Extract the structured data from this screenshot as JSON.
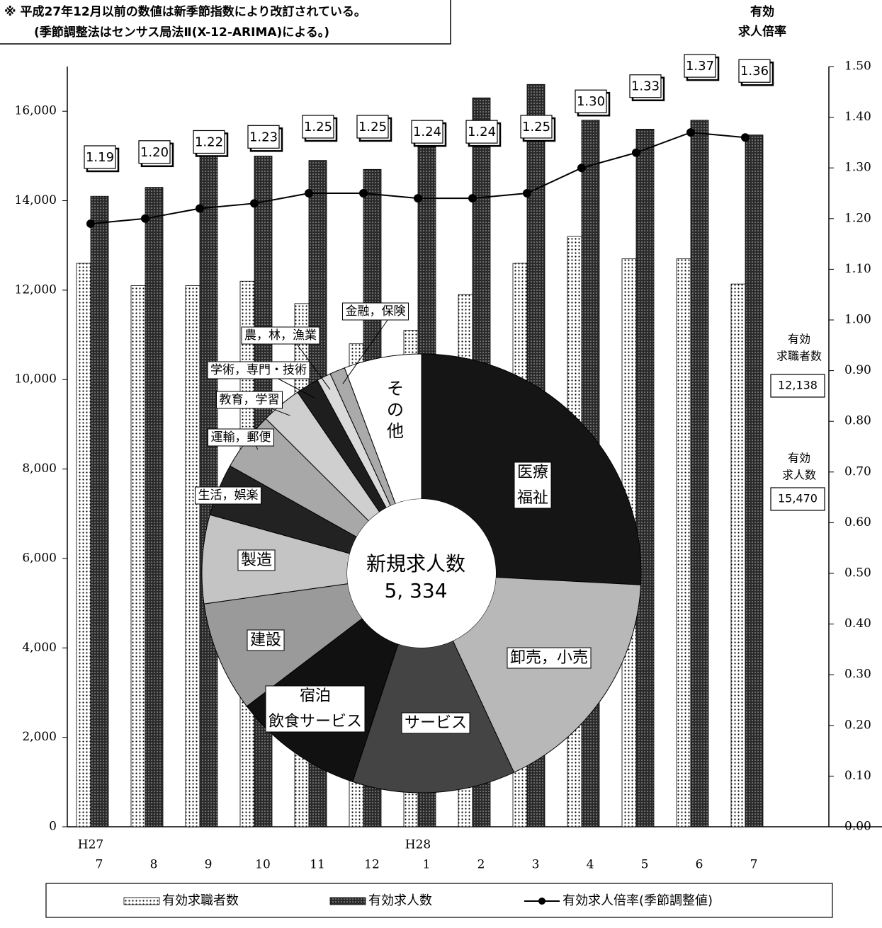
{
  "note": [
    "※ 平成27年12月以前の数値は新季節指数により改訂されている。",
    "(季節調整法はセンサス局法Ⅱ(X-12-ARIMA)による。)"
  ],
  "chart_data": [
    {
      "type": "bar",
      "categories": [
        [
          "H27",
          "7"
        ],
        [
          "8"
        ],
        [
          "9"
        ],
        [
          "10"
        ],
        [
          "11"
        ],
        [
          "12"
        ],
        [
          "H28",
          "1"
        ],
        [
          "2"
        ],
        [
          "3"
        ],
        [
          "4"
        ],
        [
          "5"
        ],
        [
          "6"
        ],
        [
          "7"
        ]
      ],
      "ylim": [
        0,
        17000
      ],
      "yticks": [
        0,
        {
          "value": 2000,
          "label": "2,000"
        },
        {
          "value": 4000,
          "label": "4,000"
        },
        {
          "value": 6000,
          "label": "6,000"
        },
        {
          "value": 8000,
          "label": "8,000"
        },
        {
          "value": 10000,
          "label": "10,000"
        },
        {
          "value": 12000,
          "label": "12,000"
        },
        {
          "value": 14000,
          "label": "14,000"
        },
        {
          "value": 16000,
          "label": "16,000"
        }
      ],
      "y2lim": [
        0,
        1.5
      ],
      "y2ticks": [
        {
          "value": 0,
          "label": "0.00"
        },
        {
          "value": 0.1,
          "label": "0.10"
        },
        {
          "value": 0.2,
          "label": "0.20"
        },
        {
          "value": 0.3,
          "label": "0.30"
        },
        {
          "value": 0.4,
          "label": "0.40"
        },
        {
          "value": 0.5,
          "label": "0.50"
        },
        {
          "value": 0.6,
          "label": "0.60"
        },
        {
          "value": 0.7,
          "label": "0.70"
        },
        {
          "value": 0.8,
          "label": "0.80"
        },
        {
          "value": 0.9,
          "label": "0.90"
        },
        {
          "value": 1.0,
          "label": "1.00"
        },
        {
          "value": 1.1,
          "label": "1.10"
        },
        {
          "value": 1.2,
          "label": "1.20"
        },
        {
          "value": 1.3,
          "label": "1.30"
        },
        {
          "value": 1.4,
          "label": "1.40"
        },
        {
          "value": 1.5,
          "label": "1.50"
        }
      ],
      "y2_label": [
        "有効",
        "求人倍率"
      ],
      "series": [
        {
          "name": "有効求職者数",
          "type": "bar",
          "pattern": "dots",
          "color": "#ffffff",
          "values": [
            12600,
            12100,
            12100,
            12200,
            11700,
            10800,
            11100,
            11900,
            12600,
            13200,
            12700,
            12700,
            12138
          ]
        },
        {
          "name": "有効求人数",
          "type": "bar",
          "pattern": "dense",
          "color": "#333333",
          "values": [
            14100,
            14300,
            15000,
            15000,
            14900,
            14700,
            15200,
            16300,
            16600,
            15800,
            15600,
            15800,
            15470
          ]
        },
        {
          "name": "有効求人倍率(季節調整値)",
          "type": "line",
          "axis": "y2",
          "color": "#000000",
          "values": [
            1.19,
            1.2,
            1.22,
            1.23,
            1.25,
            1.25,
            1.24,
            1.24,
            1.25,
            1.3,
            1.33,
            1.37,
            1.36
          ],
          "value_labels": [
            "1.19",
            "1.20",
            "1.22",
            "1.23",
            "1.25",
            "1.25",
            "1.24",
            "1.24",
            "1.25",
            "1.30",
            "1.33",
            "1.37",
            "1.36"
          ]
        }
      ],
      "annotations": [
        {
          "text": [
            "有効",
            "求職者数"
          ],
          "value_label": "12,138"
        },
        {
          "text": [
            "有効",
            "求人数"
          ],
          "value_label": "15,470"
        }
      ]
    },
    {
      "type": "pie",
      "center_label": [
        "新規求人数",
        "5, 334"
      ],
      "labels": [
        [
          "医療",
          "福祉"
        ],
        [
          "卸売，小売"
        ],
        [
          "サービス"
        ],
        [
          "宿泊",
          "飲食サービス"
        ],
        [
          "建設"
        ],
        [
          "製造"
        ],
        [
          "生活，娯楽"
        ],
        [
          "運輸，郵便"
        ],
        [
          "教育，学習"
        ],
        [
          "学術，専門・技術"
        ],
        [
          "農，林，漁業"
        ],
        [
          "金融，保険"
        ],
        [
          "そ",
          "の",
          "他"
        ]
      ],
      "values": [
        1378,
        920,
        640,
        510,
        434,
        348,
        205,
        230,
        160,
        90,
        55,
        60,
        304
      ],
      "colors": [
        "#151515",
        "#b8b8b8",
        "#444444",
        "#111111",
        "#9a9a9a",
        "#c4c4c4",
        "#222222",
        "#a8a8a8",
        "#cfcfcf",
        "#1e1e1e",
        "#dadada",
        "#aaaaaa",
        "#ffffff"
      ]
    }
  ]
}
